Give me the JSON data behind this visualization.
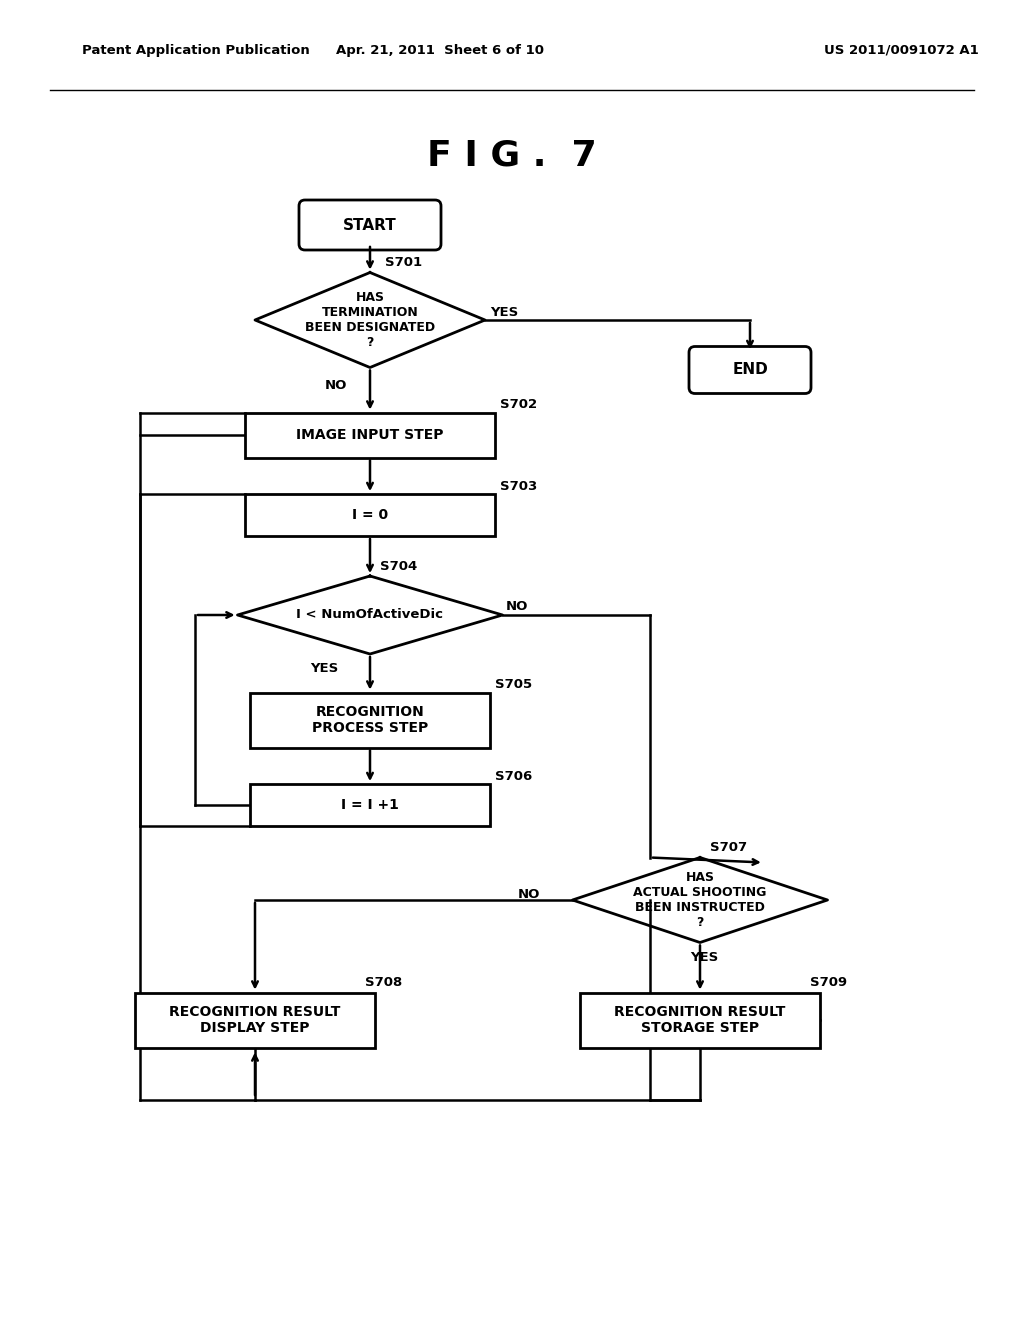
{
  "title": "F I G .  7",
  "header_left": "Patent Application Publication",
  "header_center": "Apr. 21, 2011  Sheet 6 of 10",
  "header_right": "US 2011/0091072 A1",
  "bg_color": "#ffffff",
  "line_color": "#000000",
  "text_color": "#000000"
}
